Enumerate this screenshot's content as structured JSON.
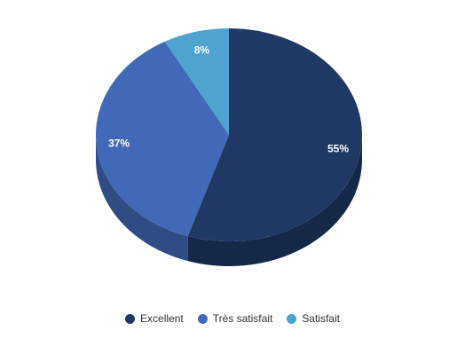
{
  "chart_data": {
    "type": "pie",
    "variant": "3d",
    "title": "",
    "categories": [
      "Excellent",
      "Très satisfait",
      "Satisfait"
    ],
    "values": [
      55,
      37,
      8
    ],
    "labels": [
      "55%",
      "37%",
      "8%"
    ],
    "colors": [
      "#1f3864",
      "#4169b8",
      "#4ea3d0"
    ],
    "legend_position": "bottom"
  },
  "legend": {
    "items": [
      {
        "label": "Excellent",
        "color": "#1f3864"
      },
      {
        "label": "Très satisfait",
        "color": "#4169b8"
      },
      {
        "label": "Satisfait",
        "color": "#4ea3d0"
      }
    ]
  }
}
